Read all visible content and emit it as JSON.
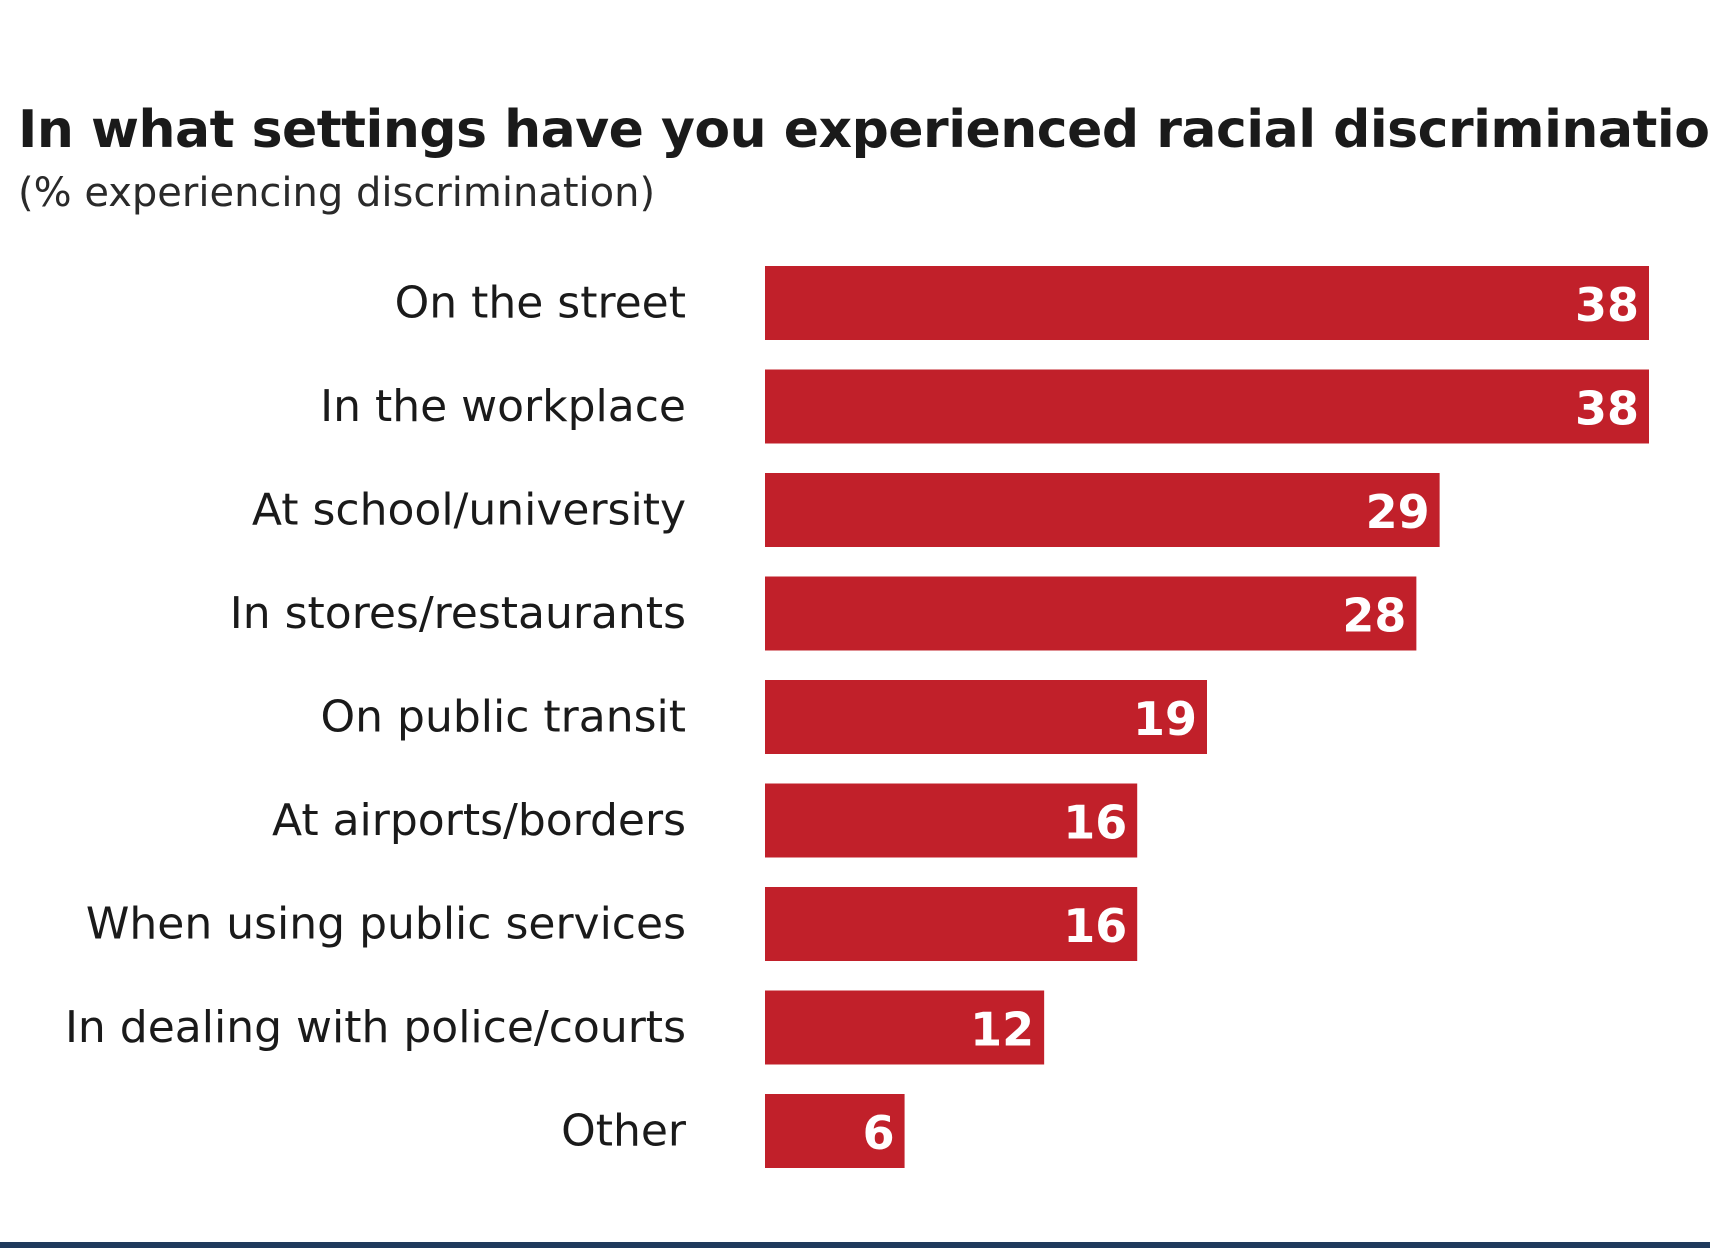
{
  "chart_data": {
    "type": "bar",
    "orientation": "horizontal",
    "title": "In what settings have you experienced racial discrimination?",
    "subtitle": "(% experiencing discrimination)",
    "xlabel": "",
    "ylabel": "",
    "xlim": [
      0,
      38
    ],
    "grid": false,
    "legend": "none",
    "bar_color": "#c1202a",
    "categories": [
      "On the street",
      "In the workplace",
      "At school/university",
      "In stores/restaurants",
      "On public transit",
      "At airports/borders",
      "When using public services",
      "In dealing with police/courts",
      "Other"
    ],
    "values": [
      38,
      38,
      29,
      28,
      19,
      16,
      16,
      12,
      6
    ]
  }
}
